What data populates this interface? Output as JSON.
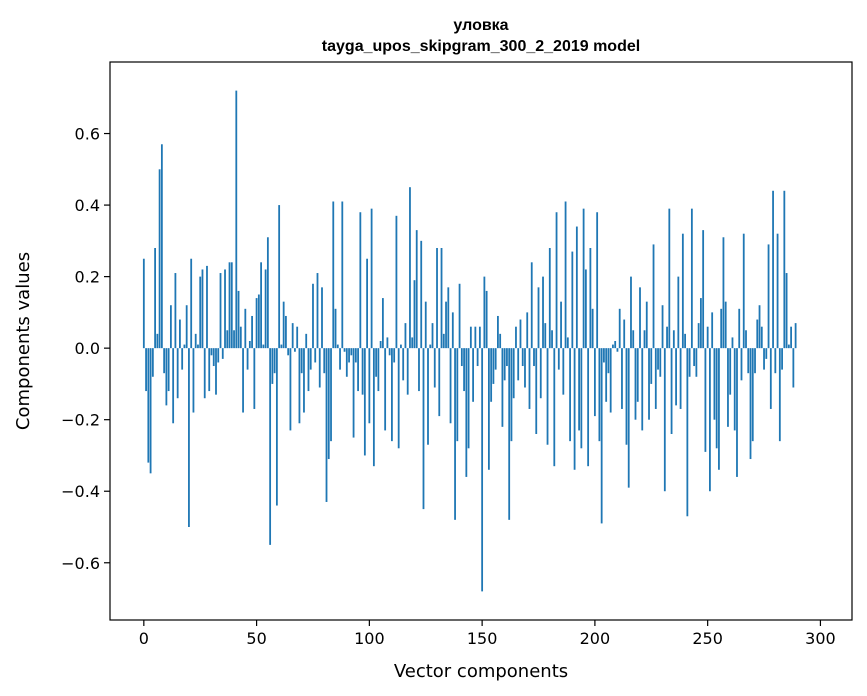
{
  "chart_data": {
    "type": "bar",
    "title_line1": "уловка",
    "title_line2": "tayga_upos_skipgram_300_2_2019 model",
    "xlabel": "Vector components",
    "ylabel": "Components values",
    "xlim": [
      -15,
      314
    ],
    "ylim": [
      -0.76,
      0.8
    ],
    "xticks": [
      0,
      50,
      100,
      150,
      200,
      250,
      300
    ],
    "xtick_labels": [
      "0",
      "50",
      "100",
      "150",
      "200",
      "250",
      "300"
    ],
    "yticks": [
      -0.6,
      -0.4,
      -0.2,
      0.0,
      0.2,
      0.4,
      0.6
    ],
    "ytick_labels": [
      "−0.6",
      "−0.4",
      "−0.2",
      "0.0",
      "0.2",
      "0.4",
      "0.6"
    ],
    "bar_color": "#1f77b4",
    "values": [
      0.25,
      -0.12,
      -0.32,
      -0.35,
      -0.08,
      0.28,
      0.04,
      0.5,
      0.57,
      -0.07,
      -0.16,
      -0.12,
      0.12,
      -0.21,
      0.21,
      -0.14,
      0.08,
      -0.06,
      0.01,
      0.12,
      -0.5,
      0.25,
      -0.18,
      0.04,
      0.01,
      0.2,
      0.22,
      -0.14,
      0.23,
      -0.12,
      -0.02,
      -0.05,
      -0.13,
      -0.04,
      0.21,
      -0.03,
      0.22,
      0.05,
      0.24,
      0.24,
      0.05,
      0.72,
      0.16,
      0.06,
      -0.18,
      0.11,
      -0.06,
      0.02,
      0.09,
      -0.17,
      0.14,
      0.15,
      0.24,
      0.01,
      0.22,
      0.31,
      -0.55,
      -0.1,
      -0.07,
      -0.44,
      0.4,
      0.01,
      0.13,
      0.09,
      -0.02,
      -0.23,
      0.07,
      -0.01,
      0.06,
      -0.21,
      -0.07,
      -0.18,
      0.04,
      -0.12,
      -0.06,
      0.18,
      -0.04,
      0.21,
      -0.11,
      0.17,
      -0.07,
      -0.43,
      -0.31,
      -0.26,
      0.41,
      0.11,
      0.01,
      -0.06,
      0.41,
      -0.01,
      -0.08,
      -0.04,
      -0.02,
      -0.25,
      -0.04,
      -0.12,
      0.38,
      -0.13,
      -0.3,
      0.25,
      -0.21,
      0.39,
      -0.33,
      -0.08,
      -0.12,
      0.02,
      0.14,
      -0.23,
      0.03,
      -0.02,
      -0.26,
      -0.04,
      0.37,
      -0.28,
      0.01,
      -0.09,
      0.07,
      -0.13,
      0.45,
      0.03,
      0.19,
      0.33,
      -0.12,
      0.3,
      -0.45,
      0.13,
      -0.27,
      0.01,
      0.07,
      -0.11,
      0.28,
      -0.19,
      0.28,
      0.04,
      0.13,
      0.17,
      -0.21,
      0.1,
      -0.48,
      -0.26,
      0.18,
      -0.05,
      -0.12,
      -0.36,
      -0.28,
      0.06,
      -0.15,
      0.06,
      -0.05,
      0.06,
      -0.68,
      0.2,
      0.16,
      -0.34,
      -0.15,
      -0.1,
      -0.06,
      0.09,
      0.04,
      -0.22,
      -0.09,
      -0.05,
      -0.48,
      -0.26,
      -0.14,
      0.06,
      -0.09,
      0.08,
      -0.05,
      -0.11,
      0.1,
      -0.17,
      0.24,
      -0.05,
      -0.24,
      0.17,
      -0.14,
      0.2,
      0.07,
      -0.27,
      0.28,
      0.05,
      -0.33,
      0.38,
      -0.06,
      0.13,
      -0.13,
      0.41,
      0.03,
      -0.26,
      0.27,
      -0.34,
      0.34,
      -0.23,
      -0.28,
      0.39,
      0.22,
      -0.33,
      0.28,
      0.11,
      -0.19,
      0.38,
      -0.26,
      -0.49,
      -0.04,
      -0.15,
      -0.07,
      -0.18,
      0.01,
      0.02,
      -0.01,
      0.11,
      -0.17,
      0.08,
      -0.27,
      -0.39,
      0.2,
      0.05,
      -0.2,
      -0.15,
      0.17,
      -0.23,
      0.05,
      0.13,
      -0.2,
      -0.1,
      0.29,
      -0.17,
      -0.06,
      -0.08,
      0.12,
      -0.4,
      0.06,
      0.39,
      -0.24,
      0.05,
      -0.16,
      0.2,
      -0.17,
      0.32,
      0.04,
      -0.47,
      -0.08,
      0.39,
      -0.05,
      -0.08,
      0.07,
      0.14,
      0.33,
      -0.29,
      0.06,
      -0.4,
      0.1,
      -0.2,
      -0.28,
      -0.34,
      0.11,
      0.31,
      0.13,
      -0.22,
      -0.13,
      0.03,
      -0.23,
      -0.36,
      0.11,
      -0.09,
      0.32,
      0.05,
      -0.07,
      -0.31,
      -0.26,
      -0.07,
      0.08,
      0.12,
      0.06,
      -0.06,
      -0.03,
      0.29,
      -0.17,
      0.44,
      -0.07,
      0.32,
      -0.26,
      -0.06,
      0.44,
      0.21,
      0.01,
      0.06,
      -0.11,
      0.07
    ]
  }
}
